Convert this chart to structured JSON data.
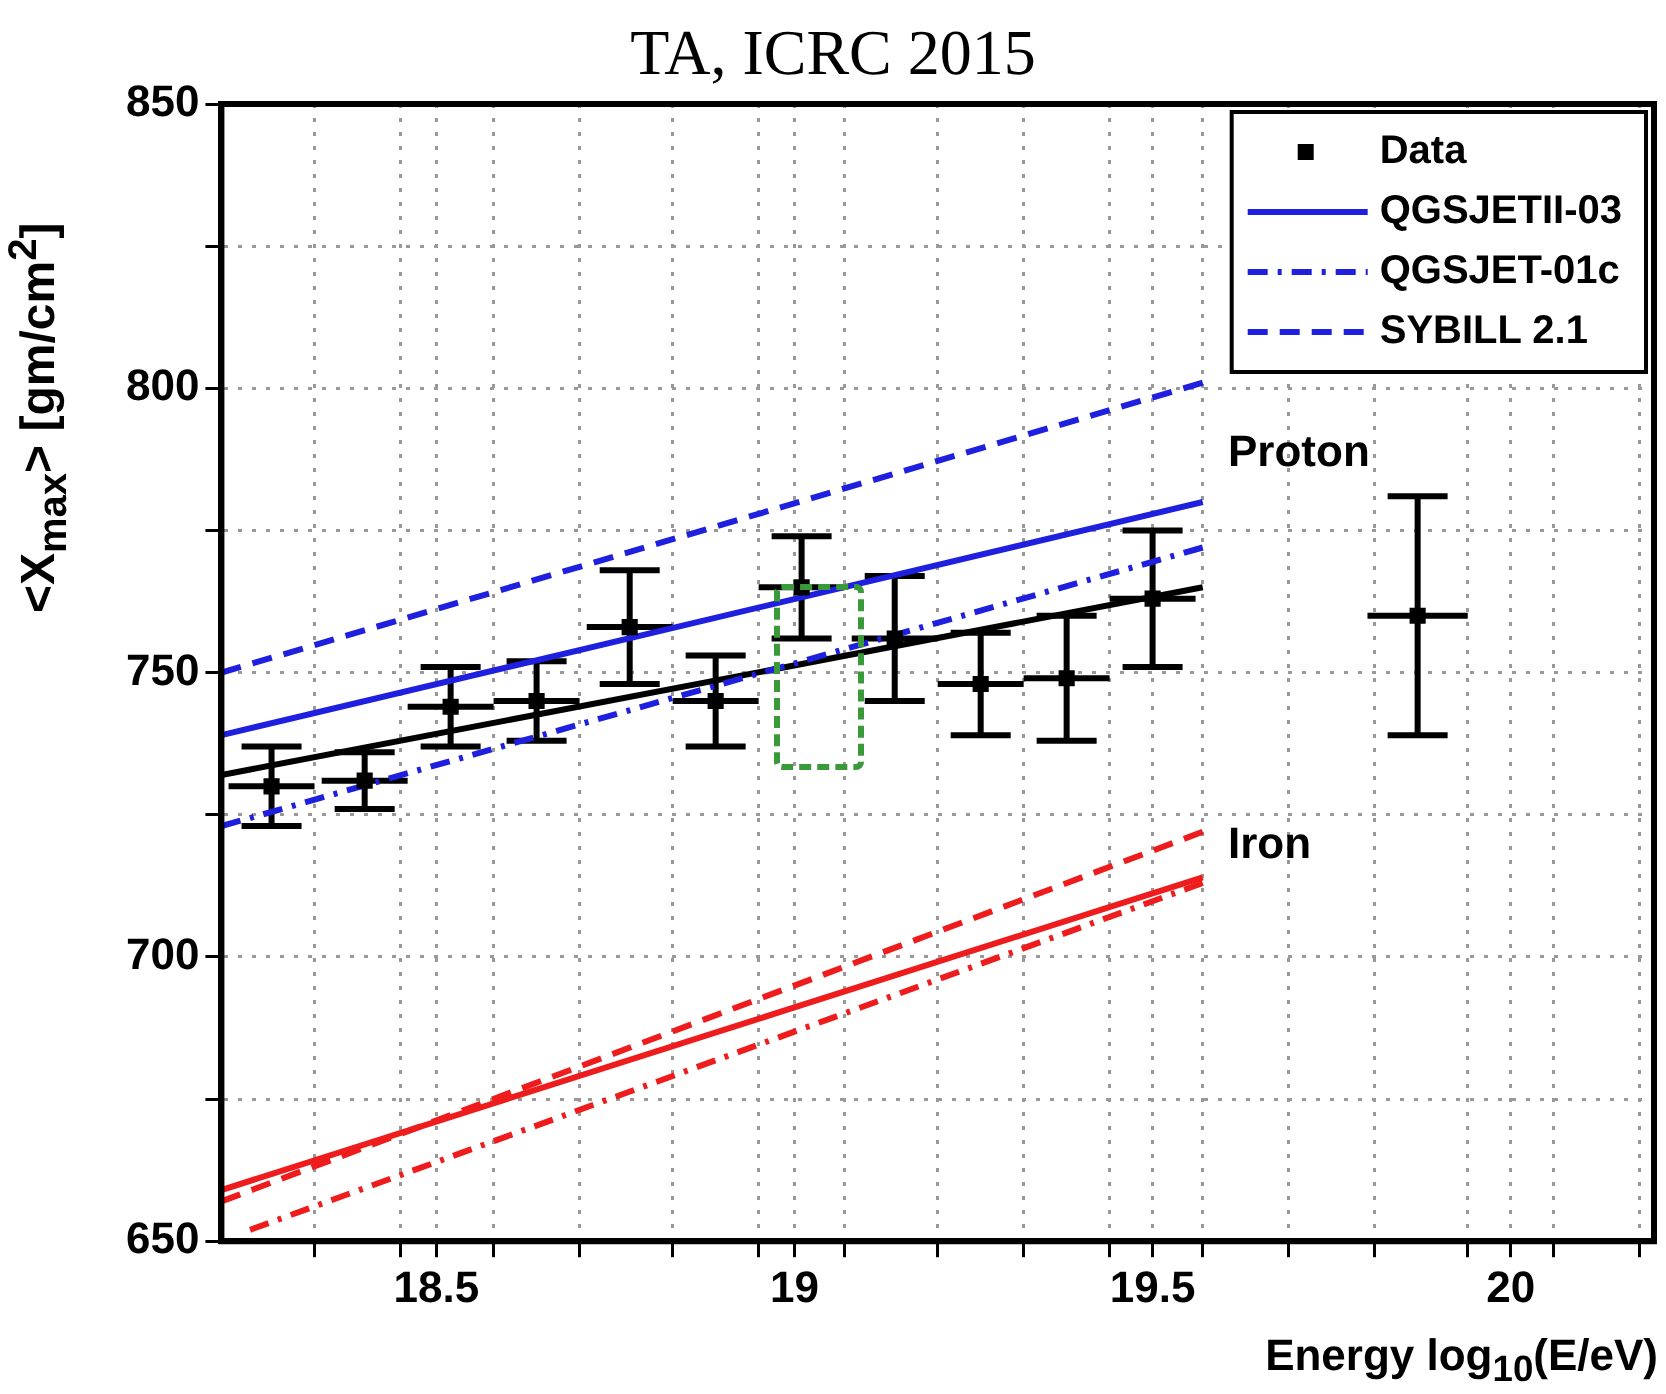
{
  "chart_data": {
    "type": "line",
    "title": "TA, ICRC 2015",
    "xlabel": "Energy  log$_{10}$(E/eV)",
    "ylabel": "<X$_{max}$>  [gm/cm$^{2}$]",
    "xlim": [
      18.2,
      20.2
    ],
    "ylim": [
      650,
      850
    ],
    "xticks": [
      {
        "value": 18.33,
        "label": null
      },
      {
        "value": 18.45,
        "label": null
      },
      18.5,
      {
        "value": 18.58,
        "label": null
      },
      {
        "value": 18.7,
        "label": null
      },
      {
        "value": 18.83,
        "label": null
      },
      {
        "value": 18.95,
        "label": null
      },
      19,
      {
        "value": 19.07,
        "label": null
      },
      {
        "value": 19.2,
        "label": null
      },
      {
        "value": 19.32,
        "label": null
      },
      {
        "value": 19.44,
        "label": null
      },
      19.5,
      {
        "value": 19.57,
        "label": null
      },
      {
        "value": 19.69,
        "label": null
      },
      {
        "value": 19.81,
        "label": null
      },
      {
        "value": 19.94,
        "label": null
      },
      20,
      {
        "value": 20.06,
        "label": null
      },
      {
        "value": 20.18,
        "label": null
      }
    ],
    "yticks": [
      650,
      {
        "value": 675,
        "label": null
      },
      700,
      {
        "value": 725,
        "label": null
      },
      750,
      {
        "value": 775,
        "label": null
      },
      800,
      {
        "value": 825,
        "label": null
      },
      850
    ],
    "grid": true,
    "legend": "top right",
    "annotations": [
      "Proton",
      "Iron"
    ],
    "series": [
      {
        "name": "Data",
        "type": "scatter",
        "marker": "square",
        "color": "#000000",
        "x": [
          18.27,
          18.4,
          18.52,
          18.64,
          18.77,
          18.89,
          19.01,
          19.14,
          19.26,
          19.38,
          19.5,
          19.87
        ],
        "values": [
          730,
          731,
          744,
          745,
          758,
          745,
          765,
          756,
          748,
          749,
          763,
          760
        ],
        "errors": [
          7,
          5,
          7,
          7,
          10,
          8,
          9,
          11,
          9,
          11,
          12,
          21
        ],
        "xerrors": [
          0.06,
          0.06,
          0.06,
          0.06,
          0.06,
          0.06,
          0.06,
          0.06,
          0.06,
          0.06,
          0.06,
          0.07
        ]
      },
      {
        "name": "QGSJETII-03",
        "line_style": "solid",
        "color": "#1f1fe0",
        "x": [
          18.2,
          19.57
        ],
        "values": [
          739,
          780
        ]
      },
      {
        "name": "QGSJET-01c",
        "line_style": "dashdot",
        "color": "#1f1fe0",
        "x": [
          18.2,
          19.57
        ],
        "values": [
          723,
          772
        ]
      },
      {
        "name": "SYBILL 2.1",
        "line_style": "dashed",
        "color": "#1f1fe0",
        "x": [
          18.2,
          19.57
        ],
        "values": [
          750,
          801
        ]
      },
      {
        "line_style": "solid",
        "color": "#000000",
        "x": [
          18.2,
          19.57
        ],
        "values": [
          732,
          765
        ]
      },
      {
        "line_style": "solid",
        "color": "#ee1c1c",
        "x": [
          18.2,
          19.57
        ],
        "values": [
          659,
          714
        ]
      },
      {
        "line_style": "dashdot",
        "color": "#ee1c1c",
        "x": [
          18.24,
          19.57
        ],
        "values": [
          652,
          713
        ]
      },
      {
        "line_style": "dashed",
        "color": "#ee1c1c",
        "x": [
          18.2,
          19.57
        ],
        "values": [
          657,
          722
        ]
      }
    ]
  }
}
